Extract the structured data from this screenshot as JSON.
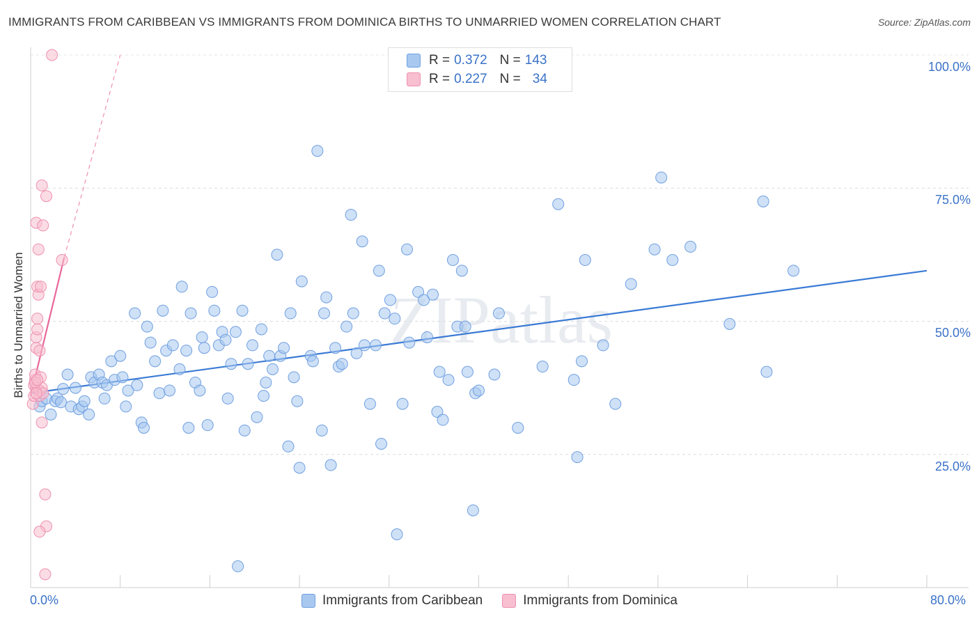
{
  "header": {
    "title": "IMMIGRANTS FROM CARIBBEAN VS IMMIGRANTS FROM DOMINICA BIRTHS TO UNMARRIED WOMEN CORRELATION CHART",
    "source": "Source: ZipAtlas.com"
  },
  "watermark": "ZIPatlas",
  "legend": {
    "rows": [
      {
        "r_label": "R =",
        "r_value": "0.372",
        "n_label": "N =",
        "n_value": "143",
        "color": "#a8c8f0",
        "border": "#6f9fe0"
      },
      {
        "r_label": "R =",
        "r_value": "0.227",
        "n_label": "N =",
        "n_value": "34",
        "color": "#f7bfd0",
        "border": "#ee8fb0"
      }
    ]
  },
  "bottom_legend": [
    {
      "label": "Immigrants from Caribbean",
      "color": "#a8c8f0",
      "border": "#6f9fe0"
    },
    {
      "label": "Immigrants from Dominica",
      "color": "#f7bfd0",
      "border": "#ee8fb0"
    }
  ],
  "chart_data": {
    "type": "scatter",
    "title": "IMMIGRANTS FROM CARIBBEAN VS IMMIGRANTS FROM DOMINICA BIRTHS TO UNMARRIED WOMEN CORRELATION CHART",
    "xlabel": "",
    "ylabel": "Births to Unmarried Women",
    "xlim": [
      0,
      80
    ],
    "ylim": [
      0,
      100
    ],
    "x_tick_labels": [
      "0.0%",
      "80.0%"
    ],
    "y_tick_labels": [
      {
        "value": 100,
        "label": "100.0%"
      },
      {
        "value": 75,
        "label": "75.0%"
      },
      {
        "value": 50,
        "label": "50.0%"
      },
      {
        "value": 25,
        "label": "25.0%"
      }
    ],
    "grid": "horizontal dashed",
    "series": [
      {
        "name": "Immigrants from Caribbean",
        "color": "#6f9fe0",
        "fill": "#a8c8f0",
        "trend": {
          "x": [
            0,
            80
          ],
          "y": [
            36.5,
            59.5
          ]
        },
        "points": [
          [
            0.8,
            34
          ],
          [
            1,
            35
          ],
          [
            1.4,
            35.5
          ],
          [
            1.8,
            32.5
          ],
          [
            2.2,
            35
          ],
          [
            2.4,
            35.5
          ],
          [
            2.7,
            34.8
          ],
          [
            2.9,
            37.3
          ],
          [
            3.3,
            40
          ],
          [
            3.6,
            34
          ],
          [
            4,
            37.5
          ],
          [
            4.3,
            33.5
          ],
          [
            4.6,
            34
          ],
          [
            4.8,
            35
          ],
          [
            5.2,
            32.5
          ],
          [
            5.4,
            39.5
          ],
          [
            5.7,
            38.5
          ],
          [
            6.1,
            40
          ],
          [
            6.4,
            38.5
          ],
          [
            6.6,
            35.5
          ],
          [
            6.8,
            38
          ],
          [
            7.2,
            42.5
          ],
          [
            7.5,
            39
          ],
          [
            8,
            43.5
          ],
          [
            8.2,
            39.5
          ],
          [
            8.5,
            34
          ],
          [
            8.7,
            37
          ],
          [
            9.3,
            51.5
          ],
          [
            9.5,
            38
          ],
          [
            9.9,
            31
          ],
          [
            10.1,
            30
          ],
          [
            10.4,
            49
          ],
          [
            10.7,
            46
          ],
          [
            11.1,
            42.5
          ],
          [
            11.5,
            36.5
          ],
          [
            11.8,
            52
          ],
          [
            12.1,
            44.5
          ],
          [
            12.4,
            37
          ],
          [
            12.7,
            45.5
          ],
          [
            13.3,
            41
          ],
          [
            13.5,
            56.5
          ],
          [
            13.9,
            44.5
          ],
          [
            14.1,
            30
          ],
          [
            14.3,
            51.5
          ],
          [
            14.7,
            38.5
          ],
          [
            15.1,
            37
          ],
          [
            15.3,
            47
          ],
          [
            15.5,
            45
          ],
          [
            15.8,
            30.5
          ],
          [
            16.2,
            55.5
          ],
          [
            16.4,
            52
          ],
          [
            16.8,
            45.5
          ],
          [
            17.1,
            48
          ],
          [
            17.4,
            46.5
          ],
          [
            17.6,
            35.5
          ],
          [
            17.9,
            42
          ],
          [
            18.3,
            48
          ],
          [
            18.5,
            4
          ],
          [
            18.9,
            52
          ],
          [
            19.1,
            29.5
          ],
          [
            19.4,
            42
          ],
          [
            19.8,
            45.5
          ],
          [
            20.2,
            32
          ],
          [
            20.6,
            48.5
          ],
          [
            20.8,
            36
          ],
          [
            21,
            38.5
          ],
          [
            21.3,
            43.5
          ],
          [
            21.6,
            41
          ],
          [
            22,
            62.5
          ],
          [
            22.3,
            43.5
          ],
          [
            22.6,
            45
          ],
          [
            23,
            26.5
          ],
          [
            23.2,
            51.5
          ],
          [
            23.5,
            39.5
          ],
          [
            23.8,
            35
          ],
          [
            24,
            22.5
          ],
          [
            24.2,
            57.5
          ],
          [
            25,
            43.5
          ],
          [
            25.2,
            42.5
          ],
          [
            26,
            29.5
          ],
          [
            26.2,
            51.5
          ],
          [
            26.4,
            54.5
          ],
          [
            26.8,
            23
          ],
          [
            27.2,
            45
          ],
          [
            27.5,
            41.5
          ],
          [
            27.8,
            42
          ],
          [
            28.2,
            49
          ],
          [
            28.6,
            70
          ],
          [
            28.8,
            51.5
          ],
          [
            29.1,
            44
          ],
          [
            29.6,
            65
          ],
          [
            29.8,
            45.5
          ],
          [
            30.3,
            34.5
          ],
          [
            30.8,
            45.5
          ],
          [
            31.1,
            59.5
          ],
          [
            31.3,
            27
          ],
          [
            31.6,
            51.5
          ],
          [
            32.1,
            54
          ],
          [
            32.5,
            50.5
          ],
          [
            32.7,
            10
          ],
          [
            33.2,
            34.5
          ],
          [
            33.6,
            63.5
          ],
          [
            33.8,
            46
          ],
          [
            34.6,
            55.5
          ],
          [
            35.1,
            54
          ],
          [
            35.4,
            47
          ],
          [
            35.9,
            55
          ],
          [
            36.3,
            33
          ],
          [
            36.5,
            40.5
          ],
          [
            36.8,
            31.5
          ],
          [
            37.3,
            39
          ],
          [
            37.7,
            61.5
          ],
          [
            38.1,
            49
          ],
          [
            38.5,
            59.5
          ],
          [
            38.8,
            49
          ],
          [
            39,
            40.5
          ],
          [
            39.5,
            14.5
          ],
          [
            39.7,
            36.5
          ],
          [
            40,
            37
          ],
          [
            41.4,
            40
          ],
          [
            41.8,
            51.5
          ],
          [
            43.5,
            30
          ],
          [
            45.7,
            41.5
          ],
          [
            47.1,
            72
          ],
          [
            48.5,
            39
          ],
          [
            48.8,
            24.5
          ],
          [
            49.2,
            42.5
          ],
          [
            49.5,
            61.5
          ],
          [
            51.1,
            45.5
          ],
          [
            52.2,
            34.5
          ],
          [
            53.6,
            57
          ],
          [
            55.7,
            63.5
          ],
          [
            56.3,
            77
          ],
          [
            57.3,
            61.5
          ],
          [
            58.9,
            64
          ],
          [
            62.4,
            49.5
          ],
          [
            65.4,
            72.5
          ],
          [
            65.7,
            40.5
          ],
          [
            68.1,
            59.5
          ],
          [
            25.6,
            82
          ]
        ]
      },
      {
        "name": "Immigrants from Dominica",
        "color": "#ee8fb0",
        "fill": "#f7bfd0",
        "trend": {
          "x": [
            0,
            3
          ],
          "y": [
            36,
            62
          ]
        },
        "trend_extension": {
          "x": [
            3,
            8
          ],
          "y": [
            62,
            100
          ]
        },
        "points": [
          [
            0.2,
            34.5
          ],
          [
            0.3,
            36
          ],
          [
            0.3,
            38
          ],
          [
            0.4,
            39
          ],
          [
            0.4,
            40
          ],
          [
            0.5,
            37.5
          ],
          [
            0.5,
            45
          ],
          [
            0.5,
            47
          ],
          [
            0.6,
            48.5
          ],
          [
            0.6,
            50.5
          ],
          [
            0.6,
            56.5
          ],
          [
            0.7,
            55
          ],
          [
            0.7,
            63.5
          ],
          [
            0.5,
            68.5
          ],
          [
            0.8,
            36
          ],
          [
            0.8,
            37
          ],
          [
            0.9,
            39.5
          ],
          [
            0.8,
            44.5
          ],
          [
            1,
            37.5
          ],
          [
            1,
            31
          ],
          [
            1.1,
            36.5
          ],
          [
            0.9,
            56.5
          ],
          [
            1.1,
            68
          ],
          [
            1,
            75.5
          ],
          [
            1.4,
            73.5
          ],
          [
            1.3,
            17.5
          ],
          [
            1.3,
            2.5
          ],
          [
            1.4,
            11.5
          ],
          [
            0.8,
            10.5
          ],
          [
            2.8,
            61.5
          ],
          [
            1.9,
            100
          ],
          [
            0.4,
            38.5
          ],
          [
            0.5,
            36.5
          ],
          [
            0.6,
            39
          ]
        ]
      }
    ]
  },
  "axes": {
    "y_label": "Births to Unmarried Women",
    "x_min_label": "0.0%",
    "x_max_label": "80.0%",
    "y_labels": [
      "100.0%",
      "75.0%",
      "50.0%",
      "25.0%"
    ]
  }
}
